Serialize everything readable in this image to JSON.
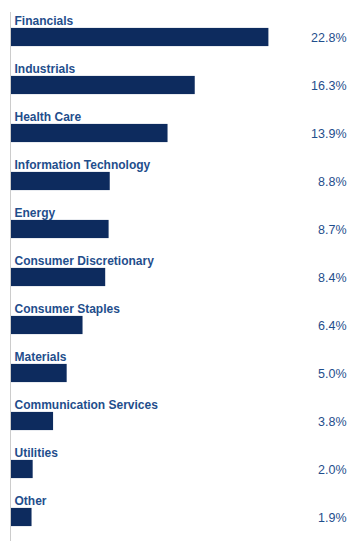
{
  "chart_data": {
    "type": "bar",
    "orientation": "horizontal",
    "categories": [
      "Financials",
      "Industrials",
      "Health Care",
      "Information Technology",
      "Energy",
      "Consumer Discretionary",
      "Consumer Staples",
      "Materials",
      "Communication Services",
      "Utilities",
      "Other"
    ],
    "values": [
      22.8,
      16.3,
      13.9,
      8.8,
      8.7,
      8.4,
      6.4,
      5.0,
      3.8,
      2.0,
      1.9
    ],
    "value_labels": [
      "22.8%",
      "16.3%",
      "13.9%",
      "8.8%",
      "8.7%",
      "8.4%",
      "6.4%",
      "5.0%",
      "3.8%",
      "2.0%",
      "1.9%"
    ],
    "color": "#0d2b5e",
    "xlim": [
      0,
      30
    ],
    "data_labels": true,
    "tick_labels": false,
    "grid": false
  }
}
